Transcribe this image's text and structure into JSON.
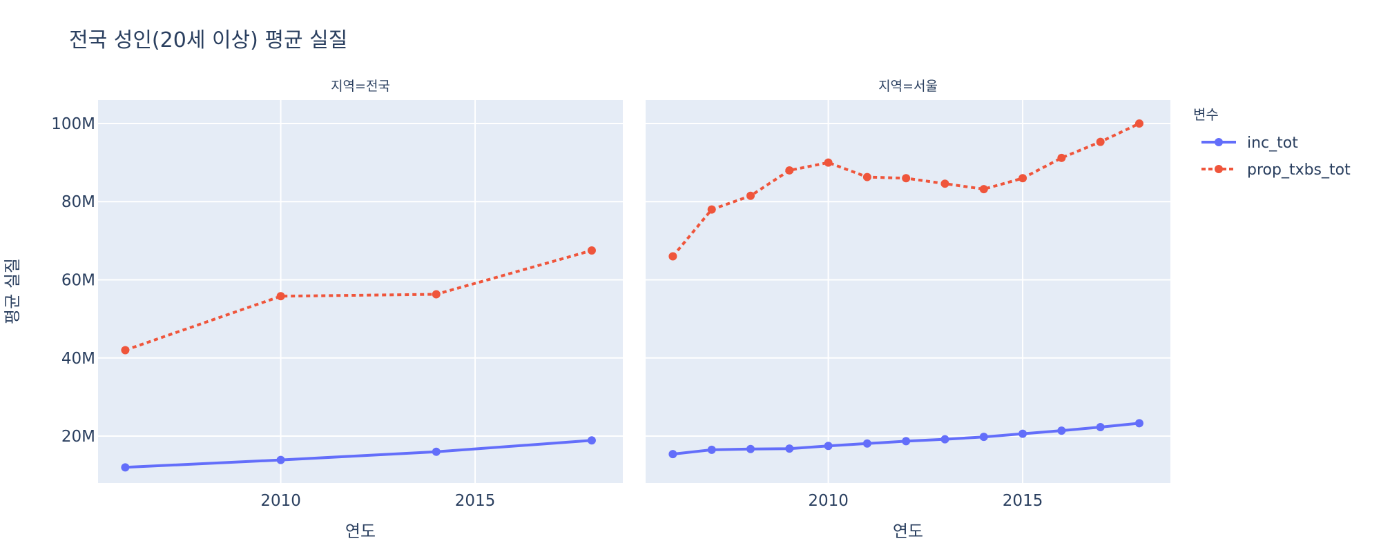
{
  "chart_data": {
    "type": "line",
    "title": "전국 성인(20세 이상) 평균 실질",
    "xlabel": "연도",
    "ylabel": "평균 실질",
    "legend_title": "변수",
    "legend_position": "right",
    "grid": true,
    "xlim": [
      2005.3,
      2018.8
    ],
    "ylim": [
      8000000,
      106000000
    ],
    "x_ticks": [
      2010,
      2015
    ],
    "y_ticks": [
      20000000,
      40000000,
      60000000,
      80000000,
      100000000
    ],
    "y_tick_labels": [
      "20M",
      "40M",
      "60M",
      "80M",
      "100M"
    ],
    "colors": {
      "inc_tot": "#636efa",
      "prop_txbs_tot": "#ef553b",
      "plot_bg": "#e5ecf6",
      "grid": "#ffffff",
      "text": "#2a3f5f"
    },
    "facets": [
      {
        "label": "지역=전국",
        "series": [
          {
            "name": "inc_tot",
            "x": [
              2006,
              2010,
              2014,
              2018
            ],
            "y": [
              12000000,
              13900000,
              16000000,
              18900000
            ]
          },
          {
            "name": "prop_txbs_tot",
            "x": [
              2006,
              2010,
              2014,
              2018
            ],
            "y": [
              42000000,
              55800000,
              56300000,
              67500000
            ]
          }
        ]
      },
      {
        "label": "지역=서울",
        "series": [
          {
            "name": "inc_tot",
            "x": [
              2006,
              2007,
              2008,
              2009,
              2010,
              2011,
              2012,
              2013,
              2014,
              2015,
              2016,
              2017,
              2018
            ],
            "y": [
              15400000,
              16500000,
              16700000,
              16800000,
              17500000,
              18100000,
              18700000,
              19200000,
              19800000,
              20600000,
              21400000,
              22300000,
              23300000
            ]
          },
          {
            "name": "prop_txbs_tot",
            "x": [
              2006,
              2007,
              2008,
              2009,
              2010,
              2011,
              2012,
              2013,
              2014,
              2015,
              2016,
              2017,
              2018
            ],
            "y": [
              66000000,
              78000000,
              81500000,
              88000000,
              90000000,
              86300000,
              86000000,
              84600000,
              83200000,
              86000000,
              91200000,
              95300000,
              100000000
            ]
          }
        ]
      }
    ]
  }
}
